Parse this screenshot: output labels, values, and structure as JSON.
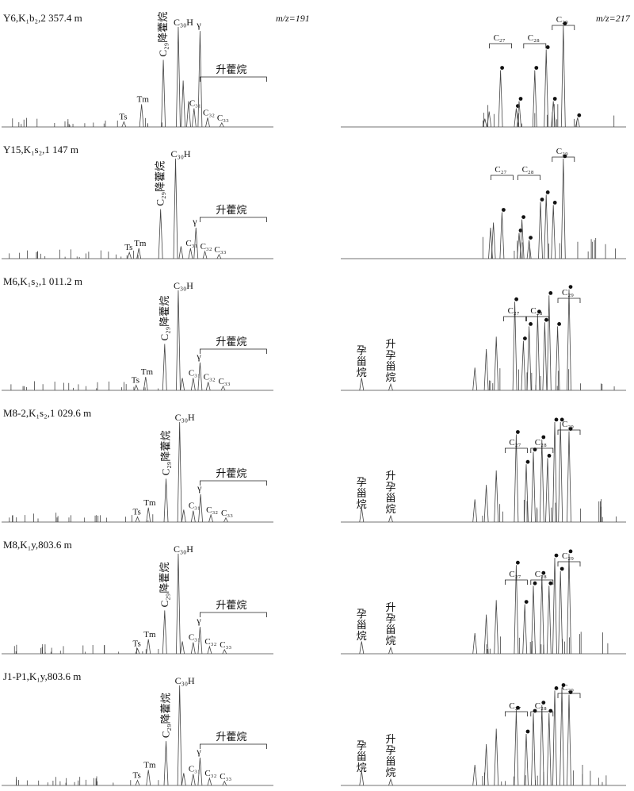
{
  "chart_data": {
    "type": "line",
    "title": "",
    "xlabel": "Retention time",
    "ylabel": "Relative abundance",
    "ion_labels": {
      "left": "m/z=191",
      "right": "m/z=217"
    },
    "homohopanes_label": "升藿烷",
    "pregnane_label": "孕甾烷",
    "homopregnane_label": "升孕甾烷",
    "samples": [
      {
        "name": "Y6,K₁b₂,2 357.4 m",
        "show_pregnane": false,
        "m191": {
          "peaks": [
            {
              "label": "Ts",
              "x": 0.45,
              "y": 0.05
            },
            {
              "label": "Tm",
              "x": 0.515,
              "y": 0.22
            },
            {
              "label": "C₂₉降藿烷",
              "x": 0.595,
              "y": 0.65
            },
            {
              "label": "C₃₀H",
              "x": 0.65,
              "y": 0.97
            },
            {
              "label": "",
              "x": 0.668,
              "y": 0.45
            },
            {
              "label": "",
              "x": 0.688,
              "y": 0.25
            },
            {
              "label": "C₃₁",
              "x": 0.708,
              "y": 0.18
            },
            {
              "label": "γ",
              "x": 0.73,
              "y": 0.93
            },
            {
              "label": "C₃₂",
              "x": 0.758,
              "y": 0.09
            },
            {
              "label": "C₃₃",
              "x": 0.81,
              "y": 0.04
            }
          ]
        },
        "m217": {
          "peaks": [
            {
              "label": "",
              "x": 0.505,
              "y": 0.08
            },
            {
              "label": "",
              "x": 0.52,
              "y": 0.15
            },
            {
              "label": "C₂₇",
              "x": 0.56,
              "y": 0.55
            },
            {
              "label": "",
              "x": 0.615,
              "y": 0.18
            },
            {
              "label": "",
              "x": 0.625,
              "y": 0.25
            },
            {
              "label": "C₂₈",
              "x": 0.68,
              "y": 0.55
            },
            {
              "label": "",
              "x": 0.72,
              "y": 0.75
            },
            {
              "label": "",
              "x": 0.745,
              "y": 0.25
            },
            {
              "label": "C₂₉",
              "x": 0.78,
              "y": 0.98
            },
            {
              "label": "",
              "x": 0.83,
              "y": 0.09
            }
          ]
        }
      },
      {
        "name": "Y15,K₁s₂,1 147 m",
        "show_pregnane": false,
        "m191": {
          "peaks": [
            {
              "label": "Ts",
              "x": 0.47,
              "y": 0.06
            },
            {
              "label": "Tm",
              "x": 0.505,
              "y": 0.1
            },
            {
              "label": "C₂₉降藿烷",
              "x": 0.585,
              "y": 0.48
            },
            {
              "label": "C₃₀H",
              "x": 0.64,
              "y": 0.97
            },
            {
              "label": "",
              "x": 0.66,
              "y": 0.12
            },
            {
              "label": "C₃₁",
              "x": 0.695,
              "y": 0.1
            },
            {
              "label": "γ",
              "x": 0.715,
              "y": 0.3
            },
            {
              "label": "C₃₂",
              "x": 0.748,
              "y": 0.07
            },
            {
              "label": "C₃₃",
              "x": 0.8,
              "y": 0.04
            }
          ]
        },
        "m217": {
          "peaks": [
            {
              "label": "",
              "x": 0.525,
              "y": 0.3
            },
            {
              "label": "",
              "x": 0.535,
              "y": 0.35
            },
            {
              "label": "C₂₇",
              "x": 0.565,
              "y": 0.45
            },
            {
              "label": "",
              "x": 0.625,
              "y": 0.25
            },
            {
              "label": "",
              "x": 0.635,
              "y": 0.38
            },
            {
              "label": "C₂₈",
              "x": 0.66,
              "y": 0.18
            },
            {
              "label": "",
              "x": 0.7,
              "y": 0.55
            },
            {
              "label": "",
              "x": 0.72,
              "y": 0.62
            },
            {
              "label": "",
              "x": 0.745,
              "y": 0.52
            },
            {
              "label": "C₂₉",
              "x": 0.78,
              "y": 0.97
            }
          ]
        }
      },
      {
        "name": "M6,K₁s₂,1 011.2 m",
        "show_pregnane": true,
        "m191": {
          "peaks": [
            {
              "label": "Ts",
              "x": 0.495,
              "y": 0.05
            },
            {
              "label": "Tm",
              "x": 0.53,
              "y": 0.13
            },
            {
              "label": "C₂₉降藿烷",
              "x": 0.6,
              "y": 0.45
            },
            {
              "label": "C₃₀H",
              "x": 0.65,
              "y": 0.97
            },
            {
              "label": "",
              "x": 0.665,
              "y": 0.12
            },
            {
              "label": "C₃₁",
              "x": 0.705,
              "y": 0.12
            },
            {
              "label": "γ",
              "x": 0.73,
              "y": 0.27
            },
            {
              "label": "C₃₂",
              "x": 0.76,
              "y": 0.08
            },
            {
              "label": "C₃₃",
              "x": 0.815,
              "y": 0.04
            }
          ]
        },
        "m217": {
          "peaks": [
            {
              "label": "孕甾烷",
              "x": 0.073,
              "y": 0.12
            },
            {
              "label": "升孕甾烷",
              "x": 0.175,
              "y": 0.06
            },
            {
              "label": "",
              "x": 0.47,
              "y": 0.22
            },
            {
              "label": "",
              "x": 0.51,
              "y": 0.4
            },
            {
              "label": "",
              "x": 0.545,
              "y": 0.52
            },
            {
              "label": "C₂₇",
              "x": 0.61,
              "y": 0.86
            },
            {
              "label": "",
              "x": 0.64,
              "y": 0.48
            },
            {
              "label": "",
              "x": 0.66,
              "y": 0.62
            },
            {
              "label": "C₂₈",
              "x": 0.69,
              "y": 0.74
            },
            {
              "label": "",
              "x": 0.715,
              "y": 0.66
            },
            {
              "label": "",
              "x": 0.73,
              "y": 0.92
            },
            {
              "label": "",
              "x": 0.76,
              "y": 0.62
            },
            {
              "label": "C₂₉",
              "x": 0.8,
              "y": 0.98
            }
          ]
        }
      },
      {
        "name": "M8-2,K₁s₂,1 029.6 m",
        "show_pregnane": true,
        "m191": {
          "peaks": [
            {
              "label": "Ts",
              "x": 0.5,
              "y": 0.05
            },
            {
              "label": "Tm",
              "x": 0.54,
              "y": 0.14
            },
            {
              "label": "C₂₉降藿烷",
              "x": 0.605,
              "y": 0.42
            },
            {
              "label": "C₃₀H",
              "x": 0.655,
              "y": 0.97
            },
            {
              "label": "",
              "x": 0.67,
              "y": 0.12
            },
            {
              "label": "C₃₁",
              "x": 0.705,
              "y": 0.11
            },
            {
              "label": "γ",
              "x": 0.732,
              "y": 0.27
            },
            {
              "label": "C₃₂",
              "x": 0.77,
              "y": 0.07
            },
            {
              "label": "C₃₃",
              "x": 0.825,
              "y": 0.04
            }
          ]
        },
        "m217": {
          "peaks": [
            {
              "label": "孕甾烷",
              "x": 0.073,
              "y": 0.14
            },
            {
              "label": "升孕甾烷",
              "x": 0.175,
              "y": 0.06
            },
            {
              "label": "",
              "x": 0.47,
              "y": 0.22
            },
            {
              "label": "",
              "x": 0.51,
              "y": 0.36
            },
            {
              "label": "",
              "x": 0.545,
              "y": 0.5
            },
            {
              "label": "C₂₇",
              "x": 0.615,
              "y": 0.85
            },
            {
              "label": "",
              "x": 0.65,
              "y": 0.56
            },
            {
              "label": "",
              "x": 0.675,
              "y": 0.68
            },
            {
              "label": "C₂₈",
              "x": 0.705,
              "y": 0.8
            },
            {
              "label": "",
              "x": 0.725,
              "y": 0.62
            },
            {
              "label": "",
              "x": 0.75,
              "y": 0.97
            },
            {
              "label": "",
              "x": 0.77,
              "y": 0.97
            },
            {
              "label": "C₂₉",
              "x": 0.8,
              "y": 0.88
            }
          ]
        }
      },
      {
        "name": "M8,K₁y,803.6 m",
        "show_pregnane": true,
        "m191": {
          "peaks": [
            {
              "label": "Ts",
              "x": 0.5,
              "y": 0.05
            },
            {
              "label": "Tm",
              "x": 0.54,
              "y": 0.14
            },
            {
              "label": "C₂₉降藿烷",
              "x": 0.6,
              "y": 0.42
            },
            {
              "label": "C₃₀H",
              "x": 0.65,
              "y": 0.97
            },
            {
              "label": "",
              "x": 0.665,
              "y": 0.12
            },
            {
              "label": "C₃₁",
              "x": 0.705,
              "y": 0.11
            },
            {
              "label": "γ",
              "x": 0.73,
              "y": 0.26
            },
            {
              "label": "C₃₂",
              "x": 0.765,
              "y": 0.07
            },
            {
              "label": "C₃₃",
              "x": 0.82,
              "y": 0.04
            }
          ]
        },
        "m217": {
          "peaks": [
            {
              "label": "孕甾烷",
              "x": 0.073,
              "y": 0.12
            },
            {
              "label": "升孕甾烷",
              "x": 0.175,
              "y": 0.06
            },
            {
              "label": "",
              "x": 0.47,
              "y": 0.2
            },
            {
              "label": "",
              "x": 0.51,
              "y": 0.38
            },
            {
              "label": "",
              "x": 0.545,
              "y": 0.52
            },
            {
              "label": "C₂₇",
              "x": 0.615,
              "y": 0.86
            },
            {
              "label": "",
              "x": 0.645,
              "y": 0.48
            },
            {
              "label": "",
              "x": 0.675,
              "y": 0.66
            },
            {
              "label": "C₂₈",
              "x": 0.705,
              "y": 0.76
            },
            {
              "label": "",
              "x": 0.73,
              "y": 0.66
            },
            {
              "label": "",
              "x": 0.75,
              "y": 0.93
            },
            {
              "label": "",
              "x": 0.77,
              "y": 0.8
            },
            {
              "label": "C₂₉",
              "x": 0.8,
              "y": 0.97
            }
          ]
        }
      },
      {
        "name": "J1-P1,K₁y,803.6 m",
        "show_pregnane": true,
        "m191": {
          "peaks": [
            {
              "label": "Ts",
              "x": 0.5,
              "y": 0.05
            },
            {
              "label": "Tm",
              "x": 0.54,
              "y": 0.15
            },
            {
              "label": "C₂₉降藿烷",
              "x": 0.605,
              "y": 0.43
            },
            {
              "label": "C₃₀H",
              "x": 0.655,
              "y": 0.97
            },
            {
              "label": "",
              "x": 0.67,
              "y": 0.12
            },
            {
              "label": "C₃₁",
              "x": 0.705,
              "y": 0.11
            },
            {
              "label": "γ",
              "x": 0.73,
              "y": 0.27
            },
            {
              "label": "C₃₂",
              "x": 0.765,
              "y": 0.07
            },
            {
              "label": "C₃₃",
              "x": 0.82,
              "y": 0.04
            }
          ]
        },
        "m217": {
          "peaks": [
            {
              "label": "孕甾烷",
              "x": 0.073,
              "y": 0.14
            },
            {
              "label": "升孕甾烷",
              "x": 0.175,
              "y": 0.06
            },
            {
              "label": "",
              "x": 0.47,
              "y": 0.2
            },
            {
              "label": "",
              "x": 0.51,
              "y": 0.4
            },
            {
              "label": "",
              "x": 0.545,
              "y": 0.55
            },
            {
              "label": "C₂₇",
              "x": 0.615,
              "y": 0.73
            },
            {
              "label": "",
              "x": 0.65,
              "y": 0.5
            },
            {
              "label": "",
              "x": 0.675,
              "y": 0.7
            },
            {
              "label": "C₂₈",
              "x": 0.705,
              "y": 0.78
            },
            {
              "label": "",
              "x": 0.73,
              "y": 0.7
            },
            {
              "label": "",
              "x": 0.75,
              "y": 0.92
            },
            {
              "label": "",
              "x": 0.775,
              "y": 0.95
            },
            {
              "label": "C₂₉",
              "x": 0.8,
              "y": 0.88
            }
          ]
        }
      }
    ]
  }
}
